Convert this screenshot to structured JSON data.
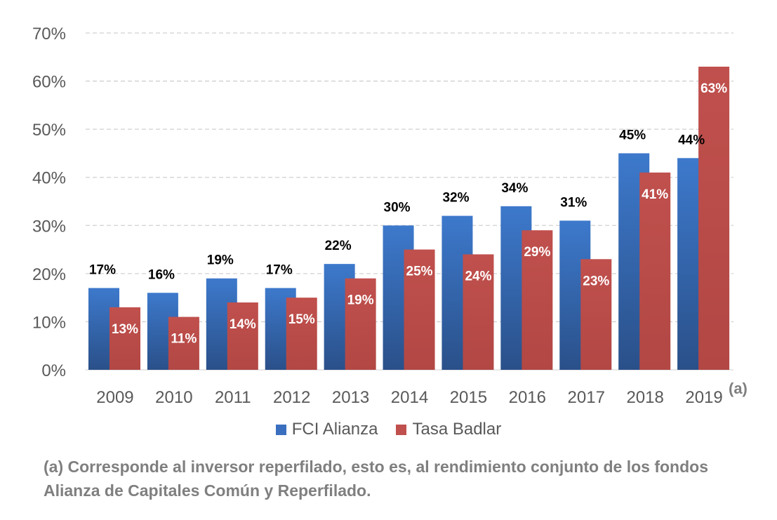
{
  "chart_data": {
    "type": "bar",
    "categories": [
      "2009",
      "2010",
      "2011",
      "2012",
      "2013",
      "2014",
      "2015",
      "2016",
      "2017",
      "2018",
      "2019"
    ],
    "series": [
      {
        "name": "FCI Alianza",
        "values": [
          17,
          16,
          19,
          17,
          22,
          30,
          32,
          34,
          31,
          45,
          44
        ],
        "labels": [
          "17%",
          "16%",
          "19%",
          "17%",
          "22%",
          "30%",
          "32%",
          "34%",
          "31%",
          "45%",
          "44%"
        ],
        "color": "#3a6fbf",
        "color_dark": "#2c5494",
        "label_position": "above"
      },
      {
        "name": "Tasa Badlar",
        "values": [
          13,
          11,
          14,
          15,
          19,
          25,
          24,
          29,
          23,
          41,
          63
        ],
        "labels": [
          "13%",
          "11%",
          "14%",
          "15%",
          "19%",
          "25%",
          "24%",
          "29%",
          "23%",
          "41%",
          "63%"
        ],
        "color": "#c0504d",
        "color_dark": "#b04642",
        "label_position": "inside-top"
      }
    ],
    "ylim": [
      0,
      70
    ],
    "yticks": [
      "0%",
      "10%",
      "20%",
      "30%",
      "40%",
      "50%",
      "60%",
      "70%"
    ],
    "grid": true,
    "legend_position": "bottom"
  },
  "footnote_marker": "(a)",
  "footnote": "(a) Corresponde al inversor reperfilado, esto es, al rendimiento conjunto de los fondos Alianza de Capitales Común y Reperfilado."
}
